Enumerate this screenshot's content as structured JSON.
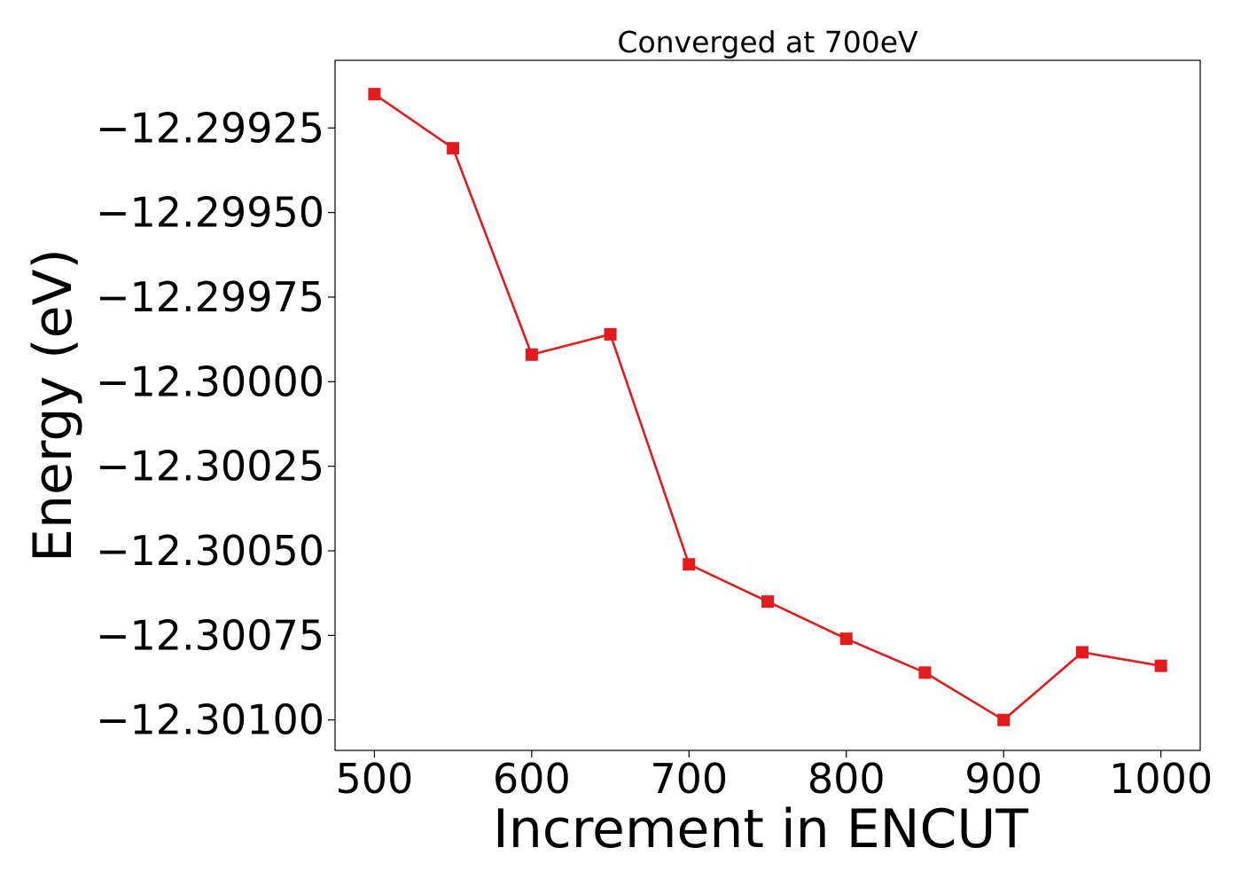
{
  "chart_data": {
    "type": "line",
    "title": "Converged at 700eV",
    "xlabel": "Increment in ENCUT",
    "ylabel": "Energy (eV)",
    "x": [
      500,
      550,
      600,
      650,
      700,
      750,
      800,
      850,
      900,
      950,
      1000
    ],
    "series": [
      {
        "values": [
          -12.29915,
          -12.29931,
          -12.29992,
          -12.29986,
          -12.30054,
          -12.30065,
          -12.30076,
          -12.30086,
          -12.301,
          -12.3008,
          -12.30084
        ],
        "color": "#e41a1c",
        "marker": "square"
      }
    ],
    "xticks": [
      500,
      600,
      700,
      800,
      900,
      1000
    ],
    "xtick_labels": [
      "500",
      "600",
      "700",
      "800",
      "900",
      "1000"
    ],
    "yticks": [
      -12.29925,
      -12.2995,
      -12.29975,
      -12.3,
      -12.30025,
      -12.3005,
      -12.30075,
      -12.301
    ],
    "ytick_labels": [
      "−12.29925",
      "−12.29950",
      "−12.29975",
      "−12.30000",
      "−12.30025",
      "−12.30050",
      "−12.30075",
      "−12.30100"
    ],
    "xlim": [
      475,
      1025
    ],
    "ylim": [
      -12.30109,
      -12.29905
    ],
    "grid": false,
    "legend": "none"
  }
}
